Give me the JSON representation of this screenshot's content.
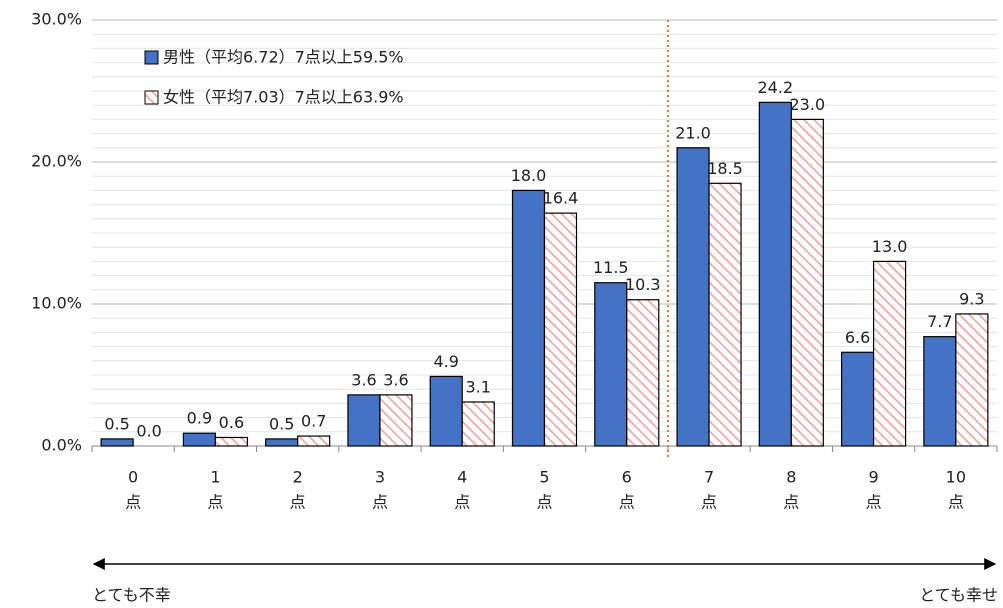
{
  "chart_data": {
    "type": "bar",
    "categories": [
      "0",
      "1",
      "2",
      "3",
      "4",
      "5",
      "6",
      "7",
      "8",
      "9",
      "10"
    ],
    "x_unit": "点",
    "series": [
      {
        "name": "男性（平均6.72）7点以上59.5%",
        "color": "#4472c4",
        "pattern": "solid",
        "values": [
          0.5,
          0.9,
          0.5,
          3.6,
          4.9,
          18.0,
          11.5,
          21.0,
          24.2,
          6.6,
          7.7
        ],
        "value_labels": [
          "0.5",
          "0.9",
          "0.5",
          "3.6",
          "4.9",
          "18.0",
          "11.5",
          "21.0",
          "24.2",
          "6.6",
          "7.7"
        ]
      },
      {
        "name": "女性（平均7.03）7点以上63.9%",
        "color": "#f4a6a6",
        "pattern": "hatch",
        "values": [
          0.0,
          0.6,
          0.7,
          3.6,
          3.1,
          16.4,
          10.3,
          18.5,
          23.0,
          13.0,
          9.3
        ],
        "value_labels": [
          "0.0",
          "0.6",
          "0.7",
          "3.6",
          "3.1",
          "16.4",
          "10.3",
          "18.5",
          "23.0",
          "13.0",
          "9.3"
        ]
      }
    ],
    "ylim": [
      0,
      30
    ],
    "yticks": [
      {
        "value": 0,
        "label": "0.0%"
      },
      {
        "value": 10,
        "label": "10.0%"
      },
      {
        "value": 20,
        "label": "20.0%"
      },
      {
        "value": 30,
        "label": "30.0%"
      }
    ],
    "grid": true,
    "minor_grid_step": 1,
    "legend": "upper left",
    "divider_after_index": 6,
    "divider_color": "#e07b20",
    "arrow_left_label": "とても不幸",
    "arrow_right_label": "とても幸せ"
  }
}
